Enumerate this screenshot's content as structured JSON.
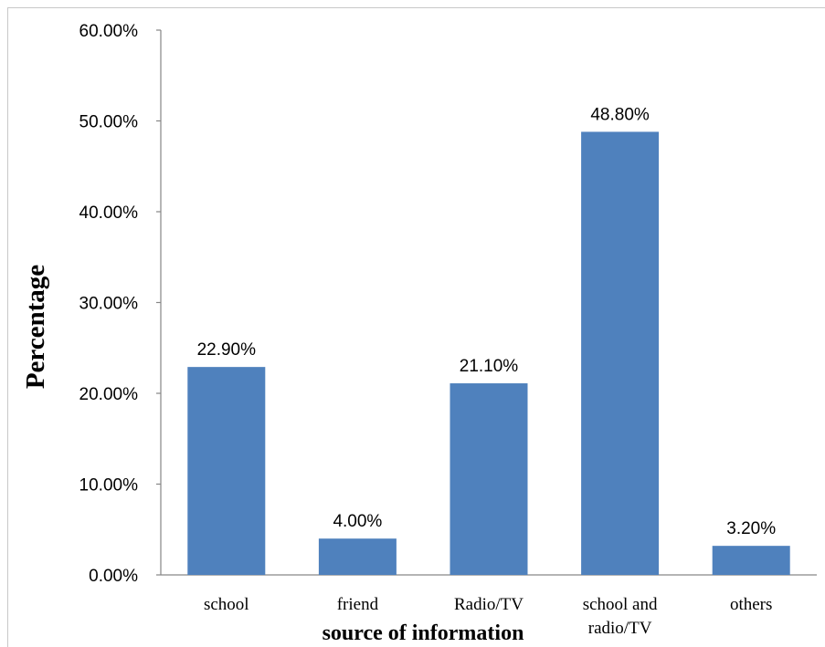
{
  "chart_data": {
    "type": "bar",
    "categories": [
      "school",
      "friend",
      "Radio/TV",
      "school and radio/TV",
      "others"
    ],
    "category_lines": [
      [
        "school"
      ],
      [
        "friend"
      ],
      [
        "Radio/TV"
      ],
      [
        "school and",
        "radio/TV"
      ],
      [
        "others"
      ]
    ],
    "values": [
      22.9,
      4.0,
      21.1,
      48.8,
      3.2
    ],
    "data_labels": [
      "22.90%",
      "4.00%",
      "21.10%",
      "48.80%",
      "3.20%"
    ],
    "xlabel": "source of information",
    "ylabel": "Percentage",
    "ylim": [
      0,
      60
    ],
    "yticks": [
      0,
      10,
      20,
      30,
      40,
      50,
      60
    ],
    "ytick_labels": [
      "0.00%",
      "10.00%",
      "20.00%",
      "30.00%",
      "40.00%",
      "50.00%",
      "60.00%"
    ],
    "grid": false,
    "legend": "none",
    "bar_color": "#4f81bd",
    "axis_color": "#868686"
  }
}
